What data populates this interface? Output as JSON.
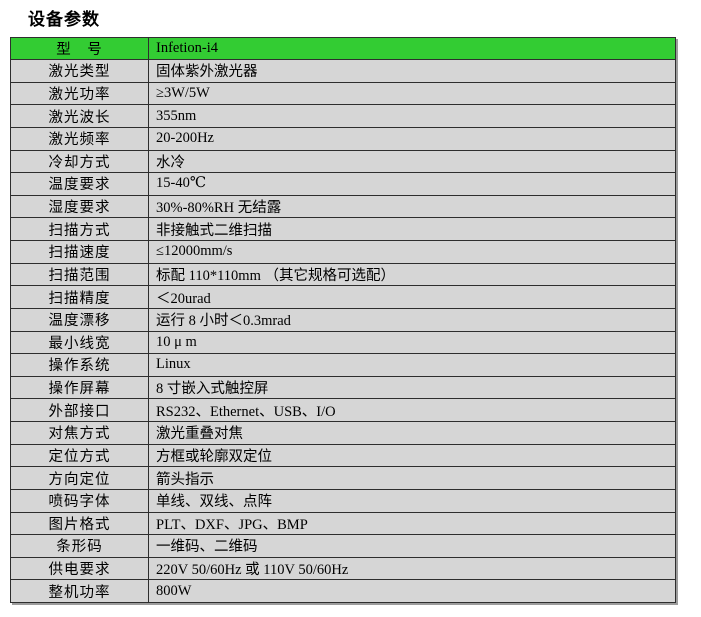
{
  "page": {
    "title": "设备参数"
  },
  "table": {
    "colors": {
      "header_bg": "#33cc33",
      "row_bg": "#d6d6d6",
      "border": "#2e2e2e"
    },
    "header": {
      "label": "型　号",
      "value": "Infetion-i4"
    },
    "rows": [
      {
        "label": "激光类型",
        "value": "固体紫外激光器"
      },
      {
        "label": "激光功率",
        "value": "≥3W/5W"
      },
      {
        "label": "激光波长",
        "value": "355nm"
      },
      {
        "label": "激光频率",
        "value": "20-200Hz"
      },
      {
        "label": "冷却方式",
        "value": "水冷"
      },
      {
        "label": "温度要求",
        "value": "15-40℃"
      },
      {
        "label": "湿度要求",
        "value": "30%-80%RH  无结露"
      },
      {
        "label": "扫描方式",
        "value": "非接触式二维扫描"
      },
      {
        "label": "扫描速度",
        "value": "≤12000mm/s"
      },
      {
        "label": "扫描范围",
        "value": "标配 110*110mm （其它规格可选配）"
      },
      {
        "label": "扫描精度",
        "value": "＜20urad"
      },
      {
        "label": "温度漂移",
        "value": "运行 8 小时＜0.3mrad"
      },
      {
        "label": "最小线宽",
        "value": "10 μ m"
      },
      {
        "label": "操作系统",
        "value": "Linux"
      },
      {
        "label": "操作屏幕",
        "value": "8 寸嵌入式触控屏"
      },
      {
        "label": "外部接口",
        "value": "RS232、Ethernet、USB、I/O"
      },
      {
        "label": "对焦方式",
        "value": "激光重叠对焦"
      },
      {
        "label": "定位方式",
        "value": "方框或轮廓双定位"
      },
      {
        "label": "方向定位",
        "value": "箭头指示"
      },
      {
        "label": "喷码字体",
        "value": "单线、双线、点阵"
      },
      {
        "label": "图片格式",
        "value": "PLT、DXF、JPG、BMP"
      },
      {
        "label": "条形码",
        "value": "一维码、二维码"
      },
      {
        "label": "供电要求",
        "value": "220V 50/60Hz 或 110V 50/60Hz"
      },
      {
        "label": "整机功率",
        "value": "800W"
      }
    ]
  }
}
